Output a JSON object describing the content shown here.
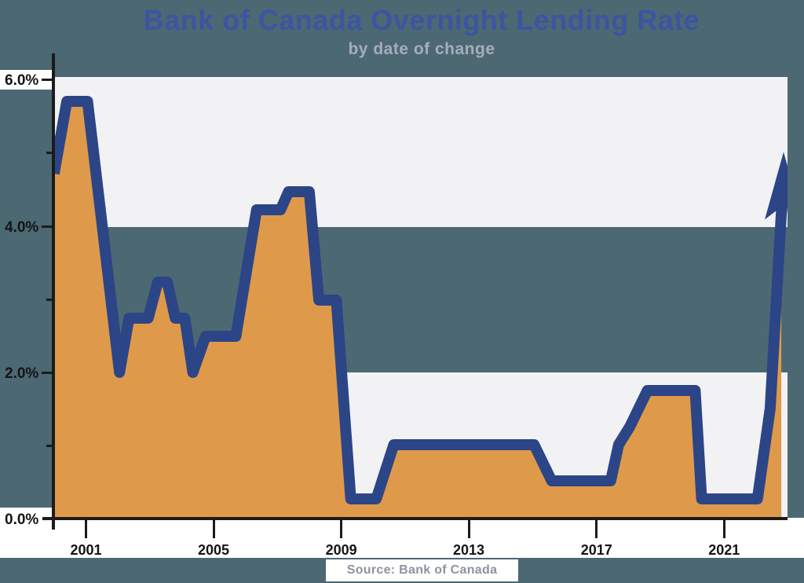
{
  "title": {
    "text": "Bank of Canada Overnight Lending Rate",
    "color": "#3b55a1"
  },
  "subtitle": {
    "text": "by date of change",
    "color": "#a7adbc"
  },
  "source": {
    "text": "Source: Bank of Canada",
    "color": "#8d93a0"
  },
  "axes": {
    "y_ticks": [
      "6.0%",
      "4.0%",
      "2.0%",
      "0.0%"
    ],
    "x_ticks": [
      "2001",
      "2005",
      "2009",
      "2013",
      "2017",
      "2021"
    ]
  },
  "chart_data": {
    "type": "area",
    "title": "Bank of Canada Overnight Lending Rate",
    "subtitle": "by date of change",
    "source": "Source: Bank of Canada",
    "x_axis": {
      "tick_labels": [
        2001,
        2005,
        2009,
        2013,
        2017,
        2021
      ],
      "range": [
        2000,
        2022.9
      ],
      "unit": "year"
    },
    "y_axis": {
      "tick_labels": [
        "0.0%",
        "2.0%",
        "4.0%",
        "6.0%"
      ],
      "range": [
        0,
        6
      ],
      "unit": "percent",
      "minor_ticks": [
        1,
        3,
        5
      ]
    },
    "grid": "off",
    "legend": "none",
    "bands": [
      {
        "from": 4.0,
        "to": 6.0,
        "color": "#f2f2f4"
      },
      {
        "from": 2.0,
        "to": 4.0,
        "color": "#4c6872"
      },
      {
        "from": 0.0,
        "to": 2.0,
        "color": "#f2f2f4"
      }
    ],
    "series": [
      {
        "name": "Overnight lending rate (%)",
        "points": [
          [
            2000.0,
            4.75
          ],
          [
            2000.4,
            5.75
          ],
          [
            2001.05,
            5.75
          ],
          [
            2002.05,
            2.0
          ],
          [
            2002.35,
            2.75
          ],
          [
            2002.95,
            2.75
          ],
          [
            2003.25,
            3.25
          ],
          [
            2003.55,
            3.25
          ],
          [
            2003.8,
            2.75
          ],
          [
            2004.1,
            2.75
          ],
          [
            2004.35,
            2.0
          ],
          [
            2004.75,
            2.5
          ],
          [
            2005.7,
            2.5
          ],
          [
            2006.35,
            4.25
          ],
          [
            2007.1,
            4.25
          ],
          [
            2007.35,
            4.5
          ],
          [
            2008.0,
            4.5
          ],
          [
            2008.3,
            3.0
          ],
          [
            2008.85,
            3.0
          ],
          [
            2009.3,
            0.25
          ],
          [
            2010.1,
            0.25
          ],
          [
            2010.65,
            1.0
          ],
          [
            2015.05,
            1.0
          ],
          [
            2015.6,
            0.5
          ],
          [
            2017.45,
            0.5
          ],
          [
            2017.7,
            1.0
          ],
          [
            2018.05,
            1.25
          ],
          [
            2018.6,
            1.75
          ],
          [
            2020.1,
            1.75
          ],
          [
            2020.3,
            0.25
          ],
          [
            2022.05,
            0.25
          ],
          [
            2022.45,
            1.5
          ],
          [
            2022.8,
            4.2
          ]
        ]
      }
    ],
    "annotation_arrow": {
      "tip_year": 2022.87,
      "tip_rate": 5.05,
      "meaning": "rate rising off right edge of chart"
    },
    "colors": {
      "area": "#de9a4a",
      "line": "#2c4587",
      "band_gray": "#f2f2f4",
      "band_teal": "#4c6872",
      "axis": "#1b1b1b"
    }
  }
}
